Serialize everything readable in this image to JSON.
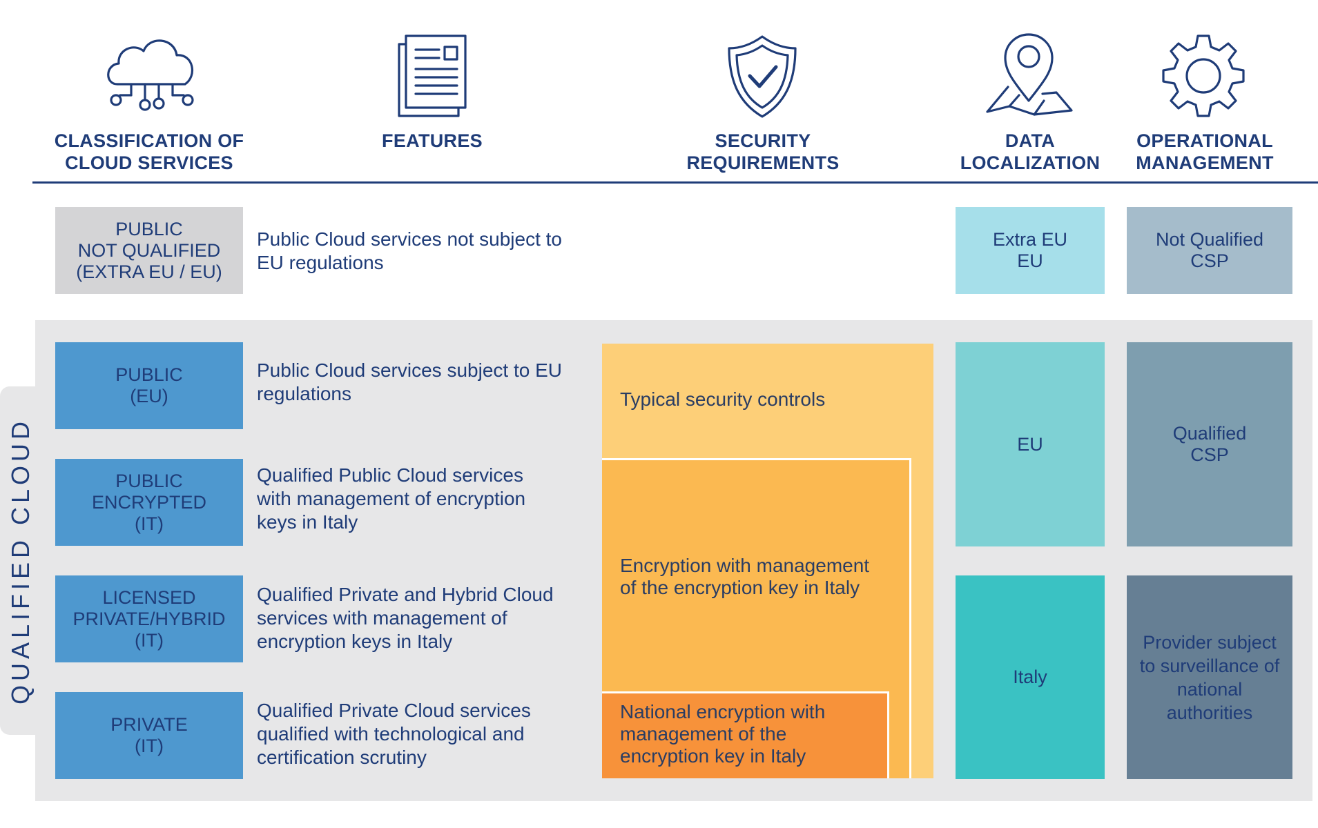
{
  "headers": {
    "classification": "CLASSIFICATION OF\nCLOUD SERVICES",
    "features": "FEATURES",
    "security": "SECURITY\nREQUIREMENTS",
    "data": "DATA\nLOCALIZATION",
    "operational": "OPERATIONAL\nMANAGEMENT"
  },
  "icons": {
    "classification": "cloud-network-icon",
    "features": "document-icon",
    "security": "shield-check-icon",
    "data": "location-map-pin-icon",
    "operational": "gear-icon"
  },
  "side_label": "QUALIFIED CLOUD",
  "rows": [
    {
      "class": "PUBLIC\nNOT QUALIFIED\n(EXTRA EU / EU)",
      "feature": "Public Cloud services not subject to\nEU regulations"
    },
    {
      "class": "PUBLIC\n(EU)",
      "feature": "Public Cloud services subject to EU\nregulations"
    },
    {
      "class": "PUBLIC\nENCRYPTED\n(IT)",
      "feature": "Qualified Public Cloud services\nwith management of encryption\nkeys in Italy"
    },
    {
      "class": "LICENSED\nPRIVATE/HYBRID\n(IT)",
      "feature": "Qualified Private and Hybrid Cloud\nservices with management of\nencryption keys in Italy"
    },
    {
      "class": "PRIVATE\n(IT)",
      "feature": "Qualified Private Cloud services\nqualified with technological and\ncertification scrutiny"
    }
  ],
  "security_levels": [
    "Typical security controls",
    "Encryption with management\nof the encryption key in Italy",
    "National encryption with\nmanagement of the\nencryption key in Italy"
  ],
  "data_localization": {
    "not_qualified": "Extra EU\nEU",
    "eu": "EU",
    "italy": "Italy"
  },
  "operational_management": {
    "not_qualified": "Not Qualified\nCSP",
    "qualified": "Qualified\nCSP",
    "surveillance": "Provider subject\nto surveillance of\nnational\nauthorities"
  },
  "colors": {
    "navy": "#1f3c78",
    "class_blue": "#4e98cf",
    "not_qualified_gray": "#d4d4d6",
    "panel_gray": "#e7e7e8",
    "sec_light": "#fdcf78",
    "sec_mid": "#fbb951",
    "sec_dark": "#f7923a",
    "loc_light": "#a6dfea",
    "loc_mid": "#7ed1d4",
    "loc_dark": "#3ac2c3",
    "op_light": "#a5bccb",
    "op_mid": "#7e9eaf",
    "op_dark": "#667f94"
  }
}
